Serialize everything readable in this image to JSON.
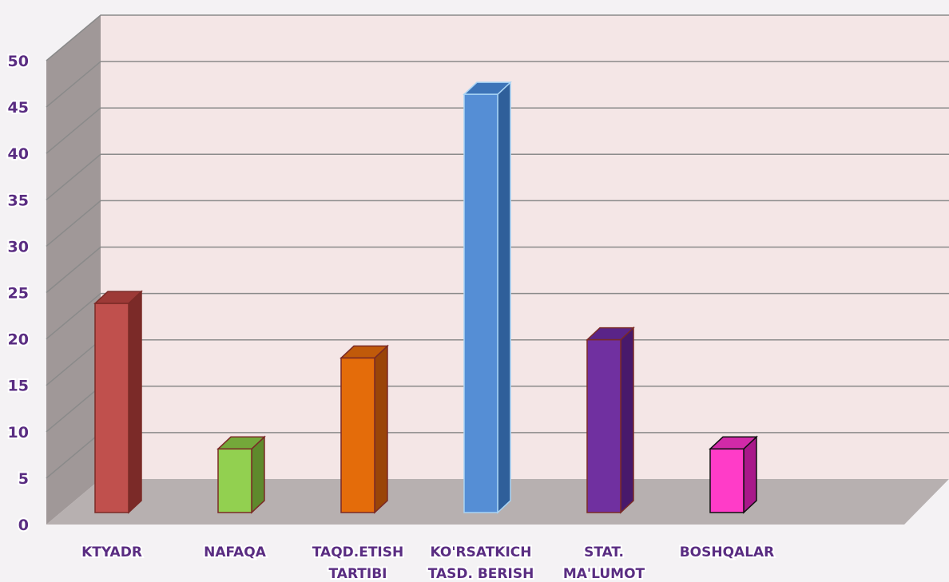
{
  "chart_data": {
    "type": "bar",
    "title": "",
    "xlabel": "",
    "ylabel": "",
    "ylim": [
      0,
      50
    ],
    "yticks": [
      0,
      5,
      10,
      15,
      20,
      25,
      30,
      35,
      40,
      45,
      50
    ],
    "grid": true,
    "legend": "none",
    "categories": [
      [
        "KTYADR"
      ],
      [
        "NAFAQA"
      ],
      [
        "TAQD.ETISH",
        "TARTIBI"
      ],
      [
        "KO'RSATKICH",
        "TASD. BERISH"
      ],
      [
        "STAT.",
        "MA'LUMOT"
      ],
      [
        "BOSHQALAR"
      ]
    ],
    "values": [
      23,
      7,
      17,
      46,
      19,
      7
    ],
    "colors": [
      "#c0504d",
      "#92d050",
      "#e46c0a",
      "#558ed5",
      "#7030a0",
      "#ff3cc8"
    ],
    "side_colors": [
      "#7b2a28",
      "#5e8a2c",
      "#9a4508",
      "#2f5f9a",
      "#48196b",
      "#a8188a"
    ],
    "top_colors": [
      "#9d3a37",
      "#74a83a",
      "#c05a0a",
      "#3d74b8",
      "#5a2488",
      "#d12aa8"
    ],
    "outline_colors": [
      "#7a2a26",
      "#7a2a26",
      "#7a2a26",
      "#a8d4f5",
      "#7a2a26",
      "#111111"
    ],
    "colors_meta": {
      "wall": "#f4e6e6",
      "floor": "#b7b0b0",
      "side_wall": "#a09898",
      "grid": "#8a8a8a",
      "label": "#5a2d82"
    }
  }
}
